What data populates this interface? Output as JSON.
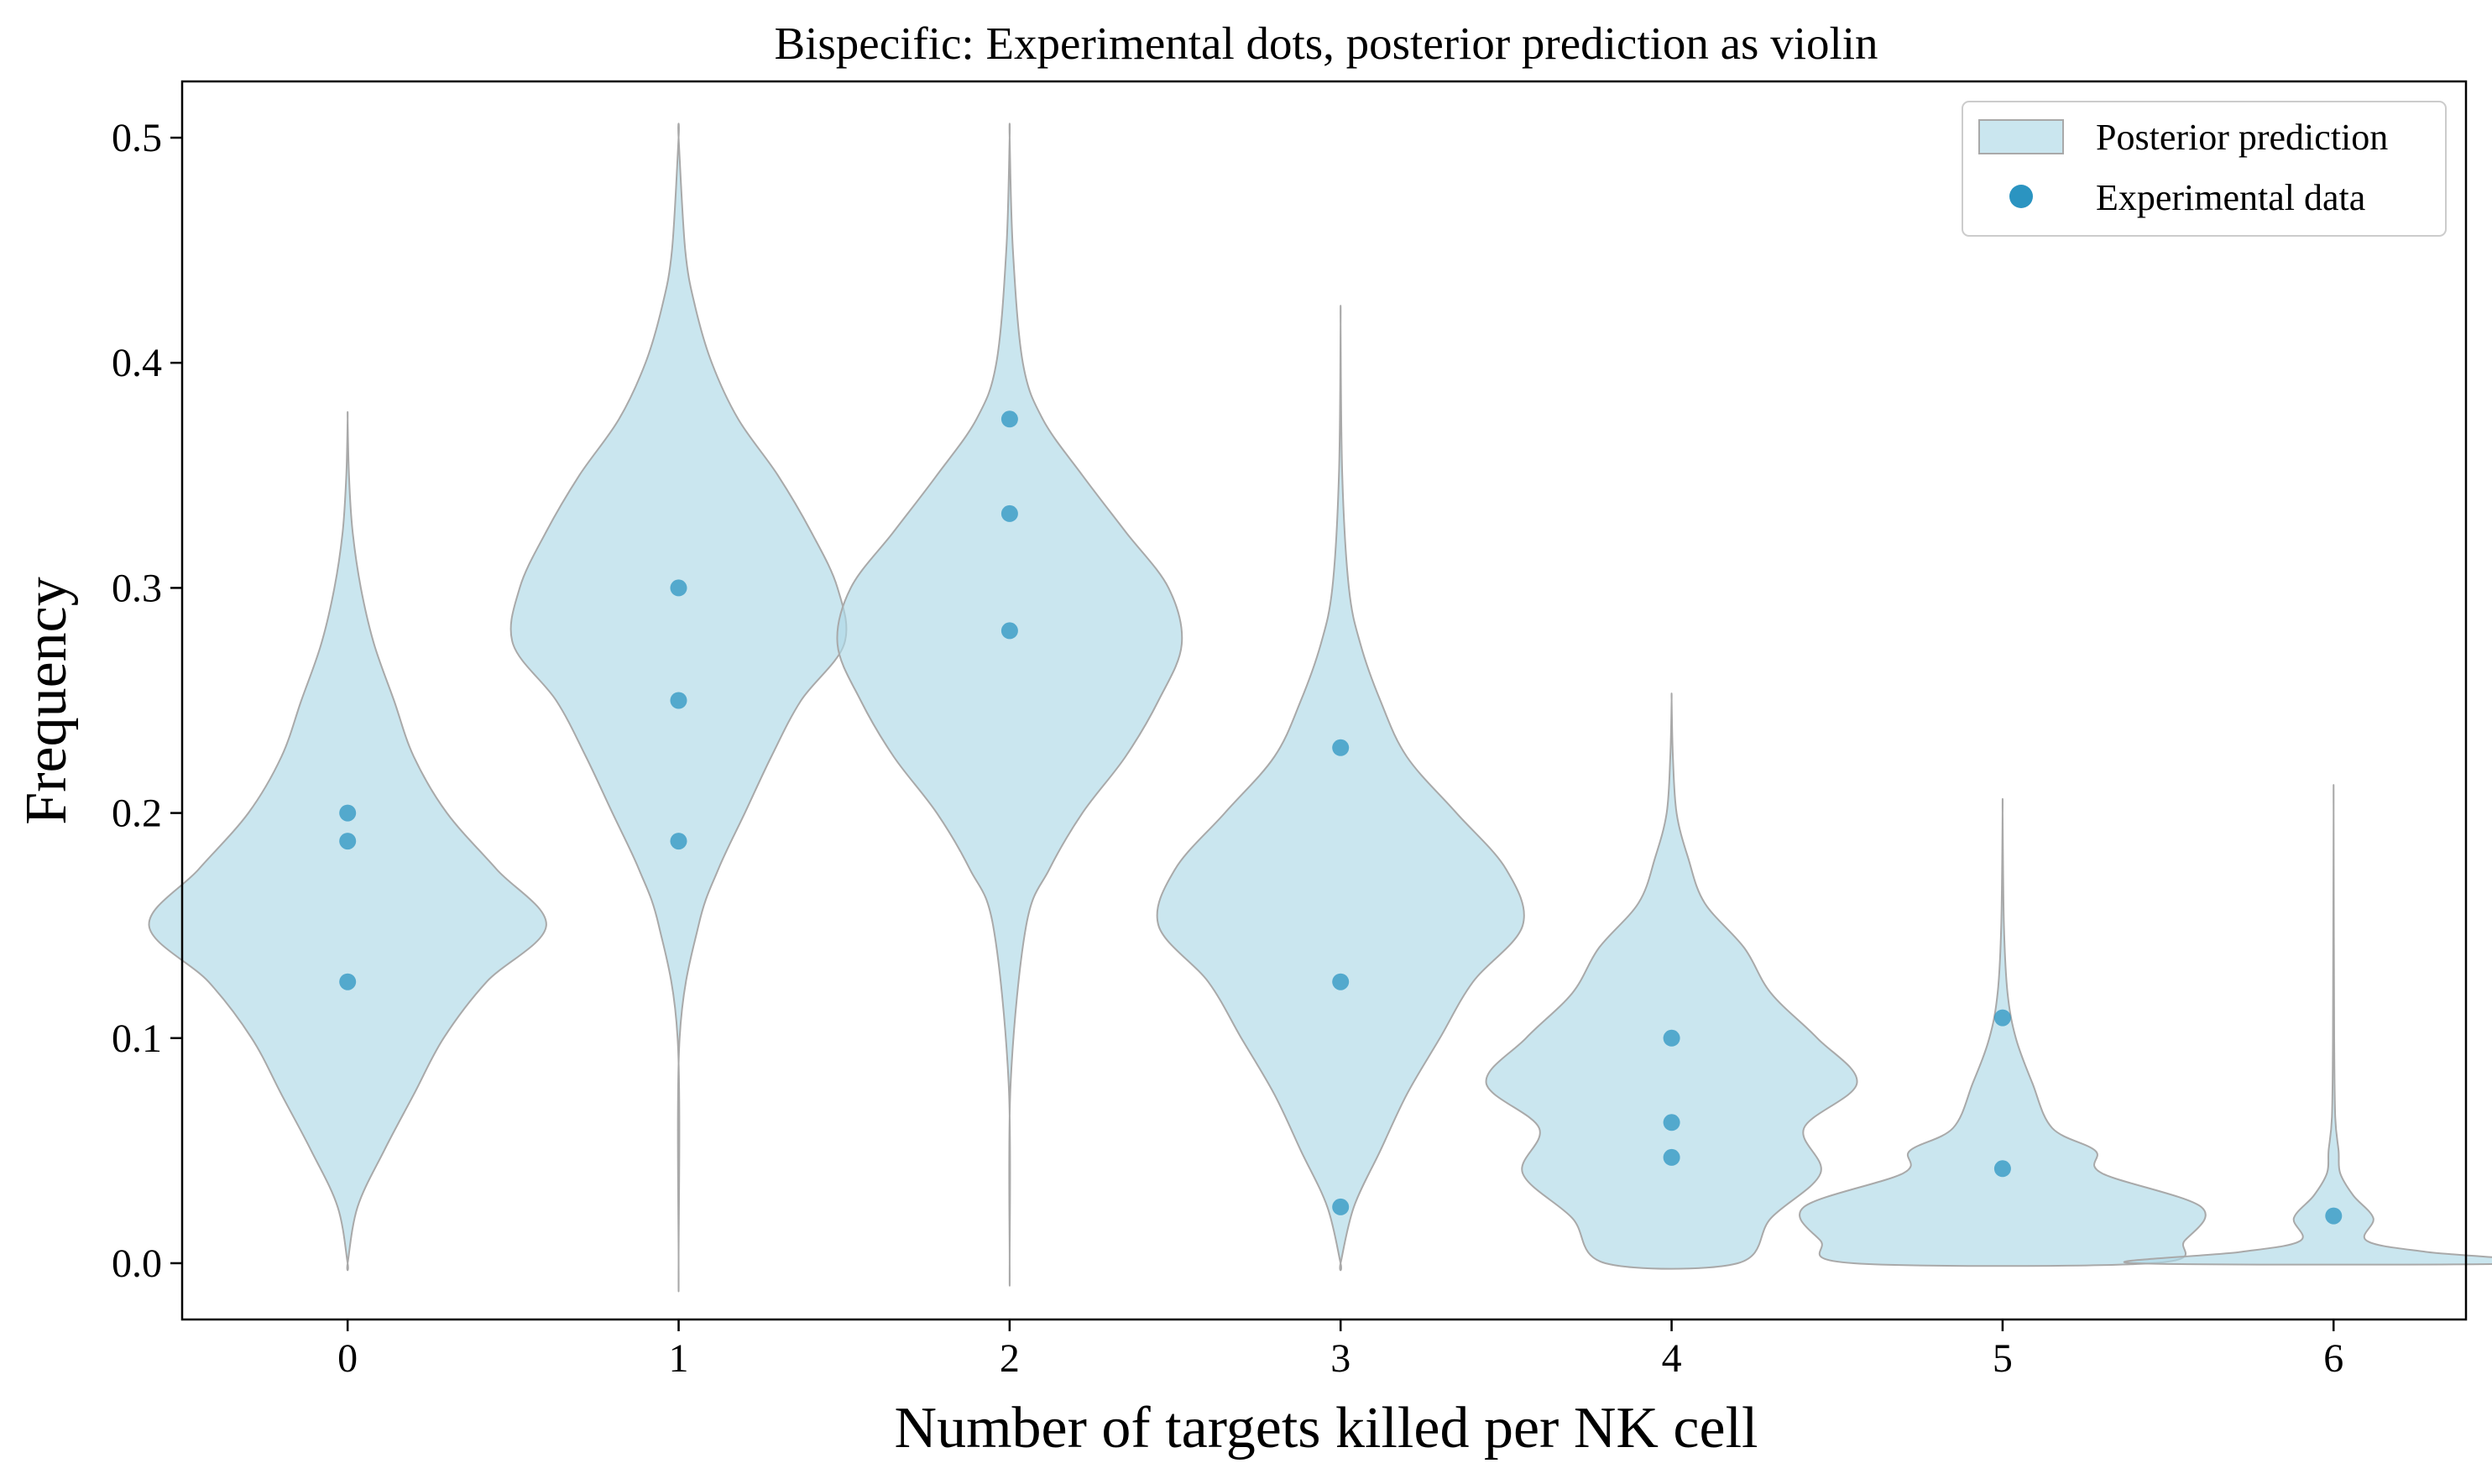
{
  "chart_data": {
    "type": "violin",
    "title": "Bispecific: Experimental dots, posterior prediction as violin",
    "xlabel": "Number of targets killed per NK cell",
    "ylabel": "Frequency",
    "xlim": [
      -0.5,
      6.4
    ],
    "ylim": [
      -0.025,
      0.525
    ],
    "x_ticks": [
      "0",
      "1",
      "2",
      "3",
      "4",
      "5",
      "6"
    ],
    "y_ticks": [
      "0.0",
      "0.1",
      "0.2",
      "0.3",
      "0.4",
      "0.5"
    ],
    "grid": false,
    "legend": {
      "placement": "top-right",
      "entries": [
        "Posterior prediction",
        "Experimental data"
      ]
    },
    "colors": {
      "violin_fill": "#add8e6",
      "violin_edge": "#a9a9a9",
      "dots": "#2b94c1"
    },
    "violins": [
      {
        "x": 0,
        "profile": [
          [
            0.0,
            0.0
          ],
          [
            0.025,
            0.03
          ],
          [
            0.05,
            0.11
          ],
          [
            0.075,
            0.2
          ],
          [
            0.1,
            0.29
          ],
          [
            0.125,
            0.42
          ],
          [
            0.15,
            0.6
          ],
          [
            0.175,
            0.45
          ],
          [
            0.2,
            0.3
          ],
          [
            0.225,
            0.2
          ],
          [
            0.25,
            0.14
          ],
          [
            0.275,
            0.08
          ],
          [
            0.3,
            0.04
          ],
          [
            0.325,
            0.015
          ],
          [
            0.35,
            0.004
          ],
          [
            0.375,
            0.0
          ]
        ]
      },
      {
        "x": 1,
        "profile": [
          [
            0.0,
            0.0
          ],
          [
            0.1,
            0.003
          ],
          [
            0.15,
            0.06
          ],
          [
            0.175,
            0.12
          ],
          [
            0.2,
            0.2
          ],
          [
            0.225,
            0.28
          ],
          [
            0.25,
            0.37
          ],
          [
            0.275,
            0.5
          ],
          [
            0.3,
            0.48
          ],
          [
            0.325,
            0.4
          ],
          [
            0.35,
            0.3
          ],
          [
            0.375,
            0.18
          ],
          [
            0.4,
            0.1
          ],
          [
            0.425,
            0.05
          ],
          [
            0.45,
            0.02
          ],
          [
            0.5,
            0.0
          ]
        ]
      },
      {
        "x": 2,
        "profile": [
          [
            0.0,
            0.0
          ],
          [
            0.08,
            0.003
          ],
          [
            0.15,
            0.05
          ],
          [
            0.175,
            0.12
          ],
          [
            0.2,
            0.22
          ],
          [
            0.225,
            0.35
          ],
          [
            0.25,
            0.45
          ],
          [
            0.275,
            0.52
          ],
          [
            0.3,
            0.48
          ],
          [
            0.325,
            0.35
          ],
          [
            0.35,
            0.22
          ],
          [
            0.375,
            0.1
          ],
          [
            0.4,
            0.04
          ],
          [
            0.45,
            0.01
          ],
          [
            0.5,
            0.0
          ]
        ]
      },
      {
        "x": 3,
        "profile": [
          [
            0.0,
            0.0
          ],
          [
            0.025,
            0.04
          ],
          [
            0.05,
            0.12
          ],
          [
            0.075,
            0.2
          ],
          [
            0.1,
            0.3
          ],
          [
            0.125,
            0.4
          ],
          [
            0.15,
            0.55
          ],
          [
            0.175,
            0.5
          ],
          [
            0.2,
            0.35
          ],
          [
            0.225,
            0.2
          ],
          [
            0.25,
            0.12
          ],
          [
            0.275,
            0.06
          ],
          [
            0.3,
            0.025
          ],
          [
            0.35,
            0.005
          ],
          [
            0.417,
            0.0
          ]
        ]
      },
      {
        "x": 4,
        "profile": [
          [
            0.0,
            0.2
          ],
          [
            0.02,
            0.3
          ],
          [
            0.04,
            0.45
          ],
          [
            0.06,
            0.4
          ],
          [
            0.08,
            0.56
          ],
          [
            0.1,
            0.44
          ],
          [
            0.12,
            0.3
          ],
          [
            0.14,
            0.22
          ],
          [
            0.16,
            0.1
          ],
          [
            0.18,
            0.05
          ],
          [
            0.2,
            0.015
          ],
          [
            0.225,
            0.004
          ],
          [
            0.25,
            0.0
          ]
        ]
      },
      {
        "x": 5,
        "profile": [
          [
            0.0,
            0.45
          ],
          [
            0.01,
            0.55
          ],
          [
            0.025,
            0.6
          ],
          [
            0.04,
            0.3
          ],
          [
            0.05,
            0.28
          ],
          [
            0.06,
            0.15
          ],
          [
            0.08,
            0.09
          ],
          [
            0.1,
            0.04
          ],
          [
            0.12,
            0.015
          ],
          [
            0.15,
            0.004
          ],
          [
            0.2,
            0.0
          ]
        ]
      },
      {
        "x": 6,
        "profile": [
          [
            0.0,
            0.6
          ],
          [
            0.005,
            0.28
          ],
          [
            0.01,
            0.1
          ],
          [
            0.02,
            0.12
          ],
          [
            0.03,
            0.06
          ],
          [
            0.04,
            0.02
          ],
          [
            0.05,
            0.015
          ],
          [
            0.065,
            0.005
          ],
          [
            0.1,
            0.002
          ],
          [
            0.2,
            0.0
          ]
        ]
      }
    ],
    "points": [
      {
        "x": 0,
        "y": 0.2
      },
      {
        "x": 0,
        "y": 0.1875
      },
      {
        "x": 0,
        "y": 0.125
      },
      {
        "x": 1,
        "y": 0.3
      },
      {
        "x": 1,
        "y": 0.25
      },
      {
        "x": 1,
        "y": 0.1875
      },
      {
        "x": 2,
        "y": 0.375
      },
      {
        "x": 2,
        "y": 0.333
      },
      {
        "x": 2,
        "y": 0.281
      },
      {
        "x": 3,
        "y": 0.229
      },
      {
        "x": 3,
        "y": 0.125
      },
      {
        "x": 3,
        "y": 0.025
      },
      {
        "x": 4,
        "y": 0.1
      },
      {
        "x": 4,
        "y": 0.0625
      },
      {
        "x": 4,
        "y": 0.047
      },
      {
        "x": 5,
        "y": 0.109
      },
      {
        "x": 5,
        "y": 0.042
      },
      {
        "x": 6,
        "y": 0.021
      }
    ]
  }
}
